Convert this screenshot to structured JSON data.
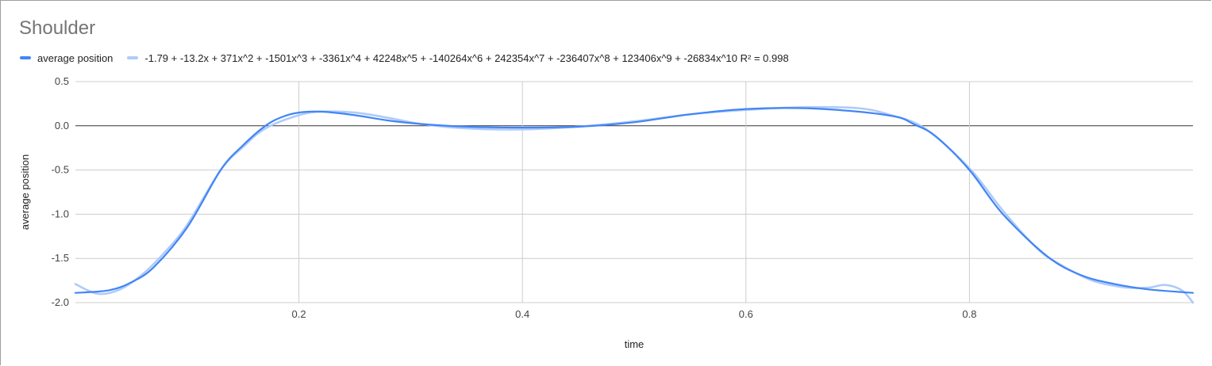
{
  "chart_data": {
    "type": "line",
    "title": "Shoulder",
    "xlabel": "time",
    "ylabel": "average position",
    "xlim": [
      0,
      1
    ],
    "ylim": [
      -2.0,
      0.5
    ],
    "x_ticks": [
      "0.2",
      "0.4",
      "0.6",
      "0.8"
    ],
    "x_tick_values": [
      0.2,
      0.4,
      0.6,
      0.8
    ],
    "y_ticks": [
      "0.5",
      "0.0",
      "-0.5",
      "-1.0",
      "-1.5",
      "-2.0"
    ],
    "y_tick_values": [
      0.5,
      0.0,
      -0.5,
      -1.0,
      -1.5,
      -2.0
    ],
    "grid": true,
    "legend_position": "top-left",
    "series": [
      {
        "name": "average position",
        "color": "#4285f4",
        "x": [
          0,
          0.03,
          0.05,
          0.07,
          0.1,
          0.13,
          0.15,
          0.17,
          0.185,
          0.2,
          0.22,
          0.25,
          0.28,
          0.31,
          0.35,
          0.4,
          0.45,
          0.5,
          0.55,
          0.6,
          0.65,
          0.7,
          0.735,
          0.75,
          0.77,
          0.8,
          0.83,
          0.87,
          0.9,
          0.93,
          0.96,
          1.0
        ],
        "y": [
          -1.89,
          -1.86,
          -1.77,
          -1.6,
          -1.15,
          -0.5,
          -0.22,
          0.0,
          0.1,
          0.15,
          0.16,
          0.12,
          0.06,
          0.02,
          -0.01,
          -0.02,
          -0.01,
          0.04,
          0.13,
          0.19,
          0.2,
          0.16,
          0.1,
          0.02,
          -0.12,
          -0.5,
          -1.0,
          -1.48,
          -1.69,
          -1.79,
          -1.85,
          -1.89
        ]
      },
      {
        "name": "-1.79 + -13.2x + 371x^2 + -1501x^3 + -3361x^4 + 42248x^5 + -140264x^6 + 242354x^7 + -236407x^8 + 123406x^9 + -26834x^10 R² = 0.998",
        "color": "#aecbfa",
        "x": [
          0,
          0.02,
          0.04,
          0.06,
          0.08,
          0.1,
          0.13,
          0.15,
          0.17,
          0.2,
          0.22,
          0.25,
          0.28,
          0.31,
          0.35,
          0.4,
          0.45,
          0.5,
          0.55,
          0.6,
          0.65,
          0.7,
          0.73,
          0.76,
          0.8,
          0.83,
          0.86,
          0.88,
          0.91,
          0.94,
          0.96,
          0.975,
          0.99,
          1.0
        ],
        "y": [
          -1.79,
          -1.9,
          -1.85,
          -1.68,
          -1.43,
          -1.12,
          -0.5,
          -0.24,
          -0.03,
          0.12,
          0.16,
          0.15,
          0.09,
          0.02,
          -0.03,
          -0.04,
          -0.01,
          0.05,
          0.13,
          0.18,
          0.21,
          0.2,
          0.12,
          -0.03,
          -0.48,
          -0.96,
          -1.38,
          -1.56,
          -1.75,
          -1.83,
          -1.83,
          -1.8,
          -1.86,
          -2.0
        ]
      }
    ]
  }
}
